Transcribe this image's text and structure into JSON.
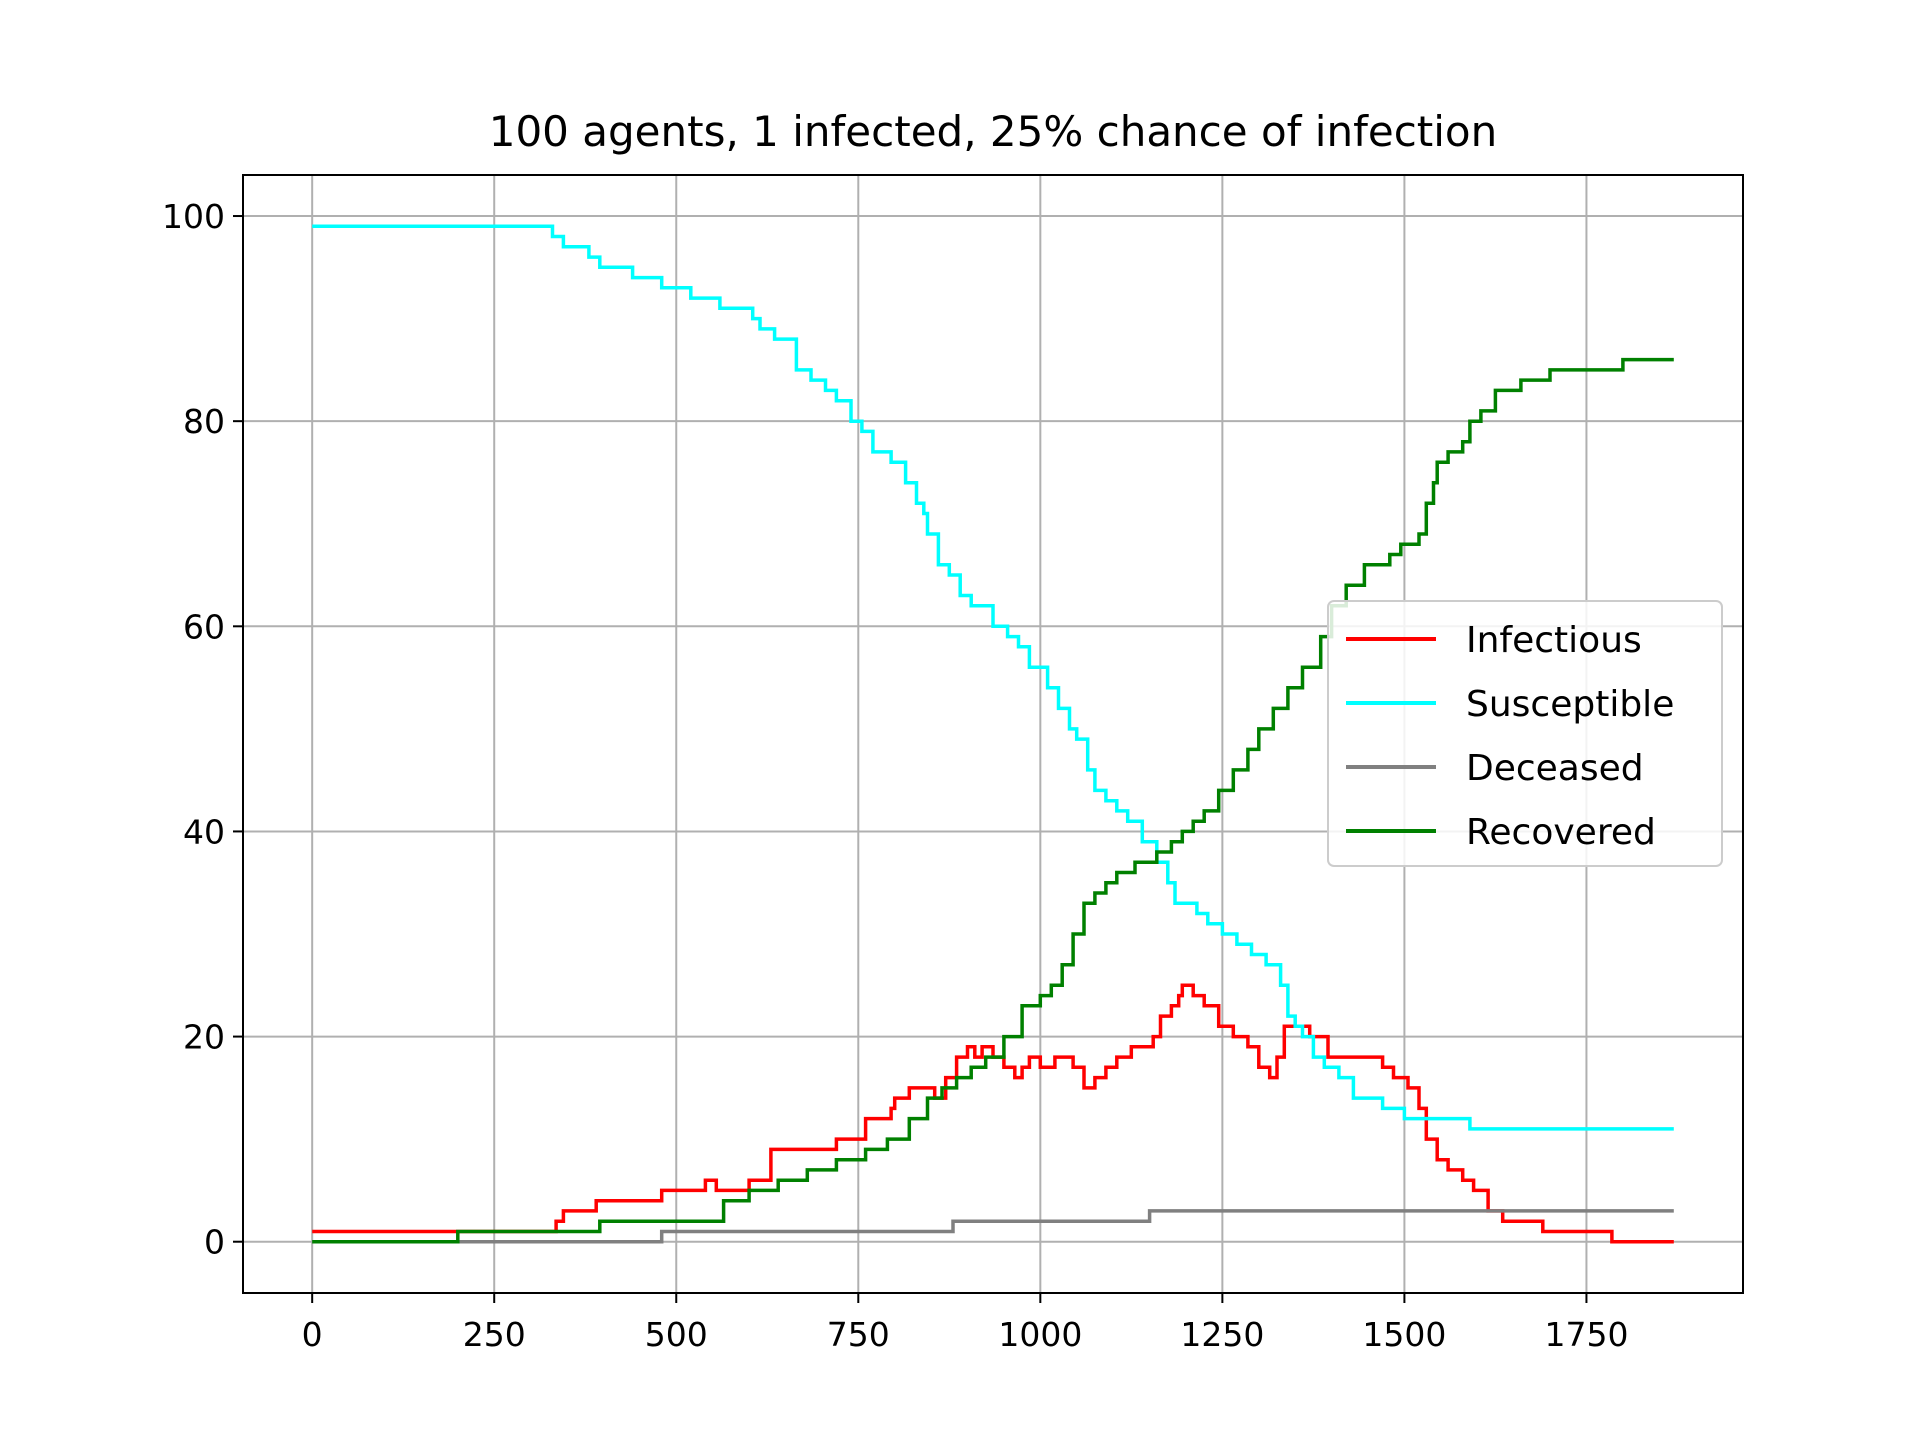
{
  "chart_data": {
    "type": "line",
    "title": "100 agents, 1 infected, 25% chance of infection",
    "xlabel": "",
    "ylabel": "",
    "xlim": [
      -95,
      1965
    ],
    "ylim": [
      -5,
      104
    ],
    "xticks": [
      0,
      250,
      500,
      750,
      1000,
      1250,
      1500,
      1750
    ],
    "yticks": [
      0,
      20,
      40,
      60,
      80,
      100
    ],
    "grid": true,
    "legend_position": "center-right",
    "series": [
      {
        "name": "Infectious",
        "color": "#ff0000",
        "x": [
          0,
          195,
          200,
          335,
          345,
          390,
          435,
          480,
          510,
          540,
          555,
          575,
          600,
          630,
          680,
          720,
          760,
          795,
          800,
          820,
          840,
          855,
          870,
          885,
          900,
          910,
          920,
          935,
          950,
          965,
          975,
          985,
          1000,
          1020,
          1045,
          1060,
          1075,
          1090,
          1105,
          1125,
          1140,
          1155,
          1165,
          1180,
          1190,
          1195,
          1210,
          1225,
          1245,
          1265,
          1285,
          1300,
          1315,
          1325,
          1335,
          1350,
          1370,
          1395,
          1420,
          1445,
          1470,
          1485,
          1505,
          1520,
          1530,
          1545,
          1560,
          1580,
          1595,
          1615,
          1635,
          1690,
          1785,
          1870
        ],
        "y": [
          1,
          1,
          1,
          2,
          3,
          4,
          4,
          5,
          5,
          6,
          5,
          5,
          6,
          9,
          9,
          10,
          12,
          13,
          14,
          15,
          15,
          14,
          16,
          18,
          19,
          18,
          19,
          18,
          17,
          16,
          17,
          18,
          17,
          18,
          17,
          15,
          16,
          17,
          18,
          19,
          19,
          20,
          22,
          23,
          24,
          25,
          24,
          23,
          21,
          20,
          19,
          17,
          16,
          18,
          21,
          21,
          20,
          18,
          18,
          18,
          17,
          16,
          15,
          13,
          10,
          8,
          7,
          6,
          5,
          3,
          2,
          1,
          0,
          0
        ]
      },
      {
        "name": "Susceptible",
        "color": "#00ffff",
        "x": [
          0,
          195,
          330,
          345,
          380,
          395,
          440,
          480,
          500,
          520,
          540,
          560,
          580,
          605,
          615,
          625,
          635,
          665,
          685,
          705,
          720,
          740,
          755,
          770,
          795,
          815,
          830,
          840,
          845,
          860,
          875,
          890,
          905,
          935,
          955,
          970,
          985,
          1010,
          1025,
          1040,
          1050,
          1065,
          1075,
          1090,
          1105,
          1120,
          1140,
          1160,
          1175,
          1185,
          1195,
          1215,
          1230,
          1250,
          1270,
          1290,
          1310,
          1330,
          1340,
          1350,
          1360,
          1375,
          1390,
          1410,
          1430,
          1470,
          1500,
          1540,
          1590,
          1870
        ],
        "y": [
          99,
          99,
          98,
          97,
          96,
          95,
          94,
          93,
          93,
          92,
          92,
          91,
          91,
          90,
          89,
          89,
          88,
          85,
          84,
          83,
          82,
          80,
          79,
          77,
          76,
          74,
          72,
          71,
          69,
          66,
          65,
          63,
          62,
          60,
          59,
          58,
          56,
          54,
          52,
          50,
          49,
          46,
          44,
          43,
          42,
          41,
          39,
          37,
          35,
          33,
          33,
          32,
          31,
          30,
          29,
          28,
          27,
          25,
          22,
          21,
          20,
          18,
          17,
          16,
          14,
          13,
          12,
          12,
          11,
          11
        ]
      },
      {
        "name": "Deceased",
        "color": "#808080",
        "x": [
          0,
          200,
          480,
          880,
          1150,
          1870
        ],
        "y": [
          0,
          0,
          1,
          2,
          3,
          3
        ]
      },
      {
        "name": "Recovered",
        "color": "#008000",
        "x": [
          0,
          200,
          395,
          540,
          565,
          600,
          640,
          680,
          720,
          760,
          790,
          820,
          845,
          865,
          885,
          905,
          925,
          950,
          975,
          1000,
          1015,
          1030,
          1045,
          1060,
          1075,
          1090,
          1105,
          1130,
          1160,
          1180,
          1195,
          1210,
          1225,
          1245,
          1265,
          1285,
          1300,
          1320,
          1340,
          1360,
          1385,
          1400,
          1420,
          1445,
          1480,
          1495,
          1520,
          1530,
          1540,
          1545,
          1560,
          1580,
          1590,
          1605,
          1625,
          1660,
          1700,
          1800,
          1870
        ],
        "y": [
          0,
          1,
          2,
          2,
          4,
          5,
          6,
          7,
          8,
          9,
          10,
          12,
          14,
          15,
          16,
          17,
          18,
          20,
          23,
          24,
          25,
          27,
          30,
          33,
          34,
          35,
          36,
          37,
          38,
          39,
          40,
          41,
          42,
          44,
          46,
          48,
          50,
          52,
          54,
          56,
          59,
          62,
          64,
          66,
          67,
          68,
          69,
          72,
          74,
          76,
          77,
          78,
          80,
          81,
          83,
          84,
          85,
          86,
          86
        ]
      }
    ]
  }
}
